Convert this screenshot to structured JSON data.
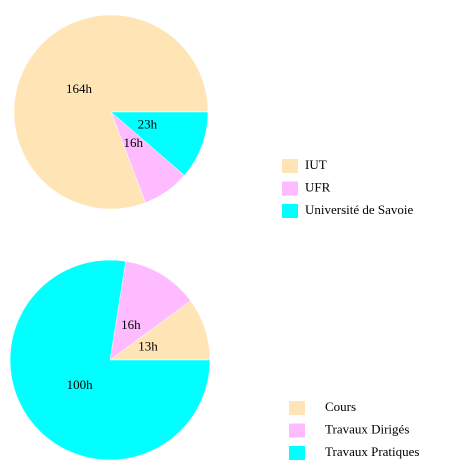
{
  "chart_data": [
    {
      "type": "pie",
      "categories": [
        "IUT",
        "UFR",
        "Université de Savoie"
      ],
      "values": [
        164,
        16,
        23
      ],
      "value_labels": [
        "164h",
        "16h",
        "23h"
      ],
      "colors": [
        "#FFE4B5",
        "#FFBBFF",
        "#00FFFF"
      ]
    },
    {
      "type": "pie",
      "categories": [
        "Cours",
        "Travaux Dirigés",
        "Travaux Pratiques"
      ],
      "values": [
        13,
        16,
        100
      ],
      "value_labels": [
        "13h",
        "16h",
        "100h"
      ],
      "colors": [
        "#FFE4B5",
        "#FFBBFF",
        "#00FFFF"
      ]
    }
  ]
}
